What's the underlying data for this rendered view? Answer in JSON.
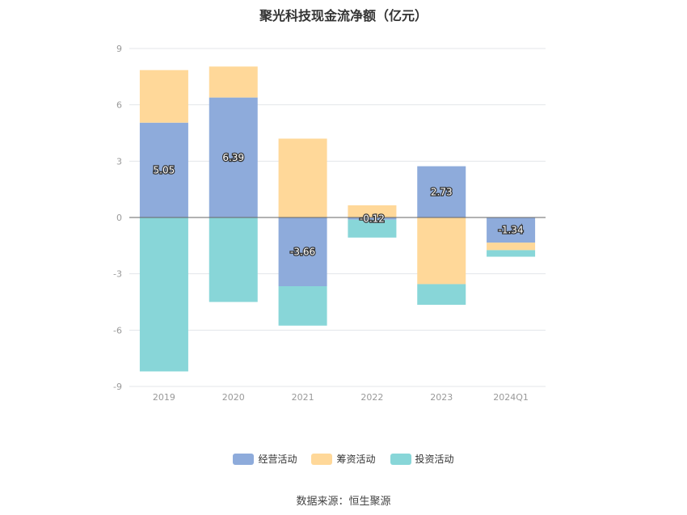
{
  "title": "聚光科技现金流净额（亿元）",
  "source": "数据来源：恒生聚源",
  "colors": {
    "经营活动": "#8eabdb",
    "筹资活动": "#ffd899",
    "投资活动": "#88d6d8",
    "grid": "#e3e6ea",
    "axis_text": "#999999",
    "zero_line": "#666666"
  },
  "chart_data": {
    "type": "bar",
    "stacked": true,
    "categories": [
      "2019",
      "2020",
      "2021",
      "2022",
      "2023",
      "2024Q1"
    ],
    "series": [
      {
        "name": "经营活动",
        "values": [
          5.05,
          6.39,
          -3.66,
          -0.12,
          2.73,
          -1.34
        ]
      },
      {
        "name": "筹资活动",
        "values": [
          2.8,
          1.65,
          4.2,
          0.65,
          -3.55,
          -0.4
        ]
      },
      {
        "name": "投资活动",
        "values": [
          -8.2,
          -4.5,
          -2.1,
          -0.95,
          -1.1,
          -0.35
        ]
      }
    ],
    "data_labels": {
      "series": "经营活动",
      "texts": [
        "5.05",
        "6.39",
        "-3.66",
        "-0.12",
        "2.73",
        "-1.34"
      ]
    },
    "yticks": [
      "9",
      "6",
      "3",
      "0",
      "-3",
      "-6",
      "-9"
    ],
    "ylim": [
      -9,
      9
    ],
    "grid": true,
    "legend_position": "bottom"
  }
}
